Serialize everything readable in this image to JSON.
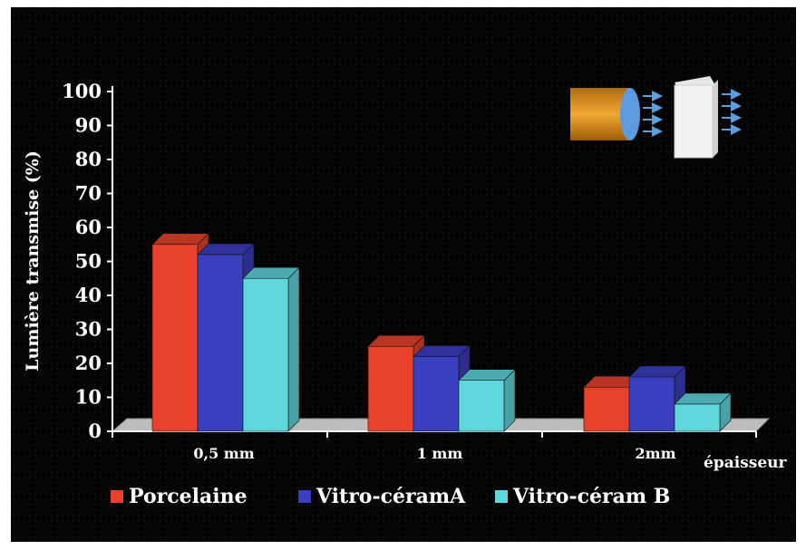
{
  "chart_data": {
    "type": "bar",
    "title": "",
    "xlabel": "épaisseur",
    "ylabel": "Lumière transmise (%)",
    "ylim": [
      0,
      100
    ],
    "yticks": [
      0,
      10,
      20,
      30,
      40,
      50,
      60,
      70,
      80,
      90,
      100
    ],
    "categories": [
      "0,5 mm",
      "1 mm",
      "2mm"
    ],
    "series": [
      {
        "name": "Porcelaine",
        "values": [
          55,
          25,
          13
        ],
        "color": "#e8432a"
      },
      {
        "name": "Vitro-céramA",
        "values": [
          52,
          22,
          16
        ],
        "color": "#3a3fc0"
      },
      {
        "name": "Vitro-céram B",
        "values": [
          45,
          15,
          8
        ],
        "color": "#5fd6dc"
      }
    ],
    "legend": "bottom",
    "grid": false
  },
  "inset_icons": [
    "cylinder-light-icon",
    "block-light-icon"
  ]
}
